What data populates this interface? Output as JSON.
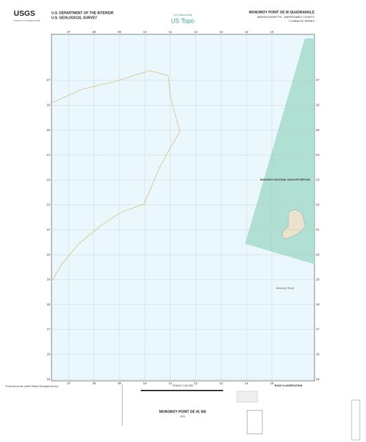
{
  "header": {
    "agency": "USGS",
    "agency_tagline": "science for a changing world",
    "department": "U.S. DEPARTMENT OF THE INTERIOR",
    "survey": "U.S. GEOLOGICAL SURVEY",
    "national_map": "The National Map",
    "brand": "US Topo",
    "quadrangle": "MONOMOY POINT OE W QUADRANGLE",
    "state_county": "MASSACHUSETTS - BARNSTABLE COUNTY",
    "series": "7.5-MINUTE SERIES"
  },
  "grid": {
    "top": [
      "27",
      "28",
      "09",
      "10",
      "11",
      "12",
      "13",
      "14",
      "15"
    ],
    "bottom": [
      "27",
      "28",
      "09",
      "10",
      "11",
      "12",
      "13",
      "14",
      "15"
    ],
    "left": [
      "27",
      "26",
      "25",
      "24",
      "23",
      "22",
      "21",
      "20",
      "19",
      "18",
      "17",
      "16",
      "15"
    ],
    "right": [
      "27",
      "26",
      "25",
      "24",
      "23",
      "22",
      "21",
      "20",
      "19",
      "18",
      "17",
      "16",
      "15"
    ]
  },
  "map": {
    "refuge_label": "MONOMOY NATIONAL WILDLIFE REFUGE",
    "shoal_label": "Monomoy Shoal"
  },
  "footer": {
    "producer": "Produced by the United States Geological Survey",
    "scale": "SCALE 1:24 000",
    "road_title": "ROAD CLASSIFICATION",
    "name": "MONOMOY POINT OE W, MA",
    "year": "2021"
  }
}
